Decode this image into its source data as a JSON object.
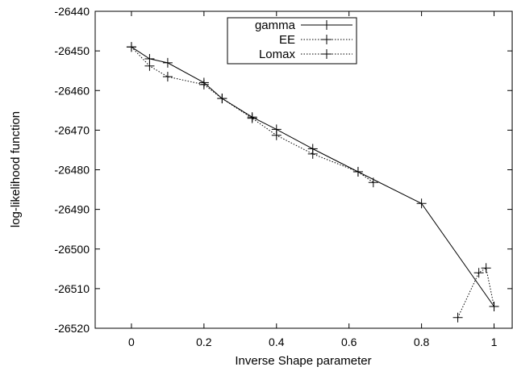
{
  "chart_data": {
    "type": "line",
    "xlabel": "Inverse Shape parameter",
    "ylabel": "log-likelihood function",
    "xlim": [
      -0.1,
      1.05
    ],
    "ylim": [
      -26520,
      -26440
    ],
    "xticks": [
      0,
      0.2,
      0.4,
      0.6,
      0.8,
      1
    ],
    "xtick_labels": [
      "0",
      "0.2",
      "0.4",
      "0.6",
      "0.8",
      "1"
    ],
    "yticks": [
      -26440,
      -26450,
      -26460,
      -26470,
      -26480,
      -26490,
      -26500,
      -26510,
      -26520
    ],
    "ytick_labels": [
      "-26440",
      "-26450",
      "-26460",
      "-26470",
      "-26480",
      "-26490",
      "-26500",
      "-26510",
      "-26520"
    ],
    "grid": false,
    "legend_position": "top-center",
    "series": [
      {
        "name": "gamma",
        "line_style": "solid",
        "marker": "plus",
        "x": [
          0,
          0.05,
          0.1,
          0.2,
          0.25,
          0.333,
          0.4,
          0.5,
          0.625,
          0.8,
          1.0
        ],
        "y": [
          -26449,
          -26452,
          -26453,
          -26458,
          -26462,
          -26466.7,
          -26469.8,
          -26474.7,
          -26480.5,
          -26488.5,
          -26514.5
        ]
      },
      {
        "name": "EE",
        "line_style": "dotted",
        "marker": "plus",
        "x": [
          0,
          0.05,
          0.1,
          0.2,
          0.25,
          0.333,
          0.4,
          0.5,
          0.625,
          0.667
        ],
        "y": [
          -26449,
          -26453.8,
          -26456.5,
          -26458.5,
          -26462,
          -26467,
          -26471.3,
          -26476,
          -26480.5,
          -26483.2
        ]
      },
      {
        "name": "Lomax",
        "line_style": "dotted",
        "marker": "plus",
        "x": [
          0.9,
          0.958,
          0.978,
          1.0
        ],
        "y": [
          -26517.3,
          -26506,
          -26504.8,
          -26514.5
        ]
      }
    ]
  }
}
